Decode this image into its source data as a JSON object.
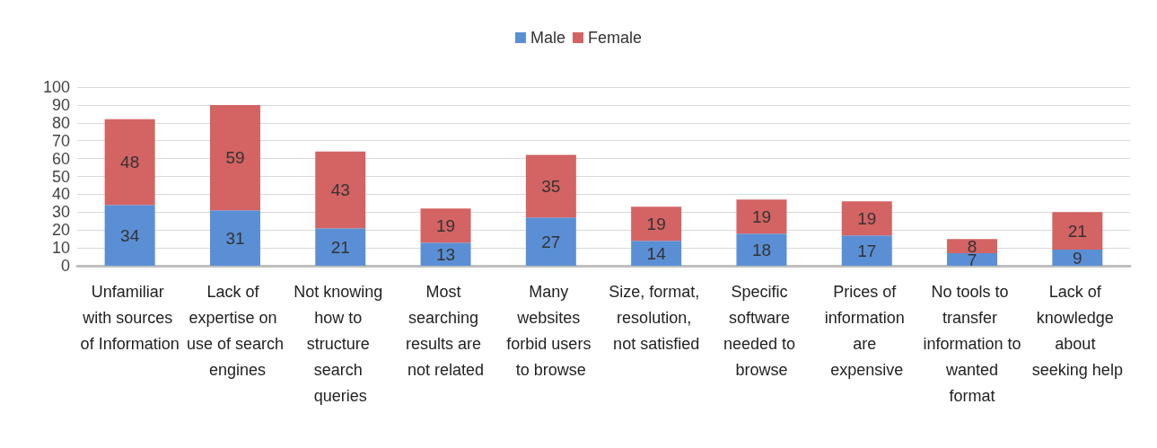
{
  "chart_data": {
    "type": "bar",
    "stacked": true,
    "categories": [
      "Unfamiliar with sources of Information",
      "Lack of expertise on use of search engines",
      "Not knowing how to structure search queries",
      "Most searching results are not related",
      "Many websites forbid users to browse",
      "Size, format, resolution, not satisfied",
      "Specific software needed to browse",
      "Prices of information are expensive",
      "No tools to transfer information to wanted format",
      "Lack of knowledge about seeking help"
    ],
    "series": [
      {
        "name": "Male",
        "color": "#5b8fd5",
        "values": [
          34,
          31,
          21,
          13,
          27,
          14,
          18,
          17,
          7,
          9
        ]
      },
      {
        "name": "Female",
        "color": "#d46363",
        "values": [
          48,
          59,
          43,
          19,
          35,
          19,
          19,
          19,
          8,
          21
        ]
      }
    ],
    "ylim": [
      0,
      100
    ],
    "yticks": [
      0,
      10,
      20,
      30,
      40,
      50,
      60,
      70,
      80,
      90,
      100
    ],
    "grid": "y",
    "legend": "top",
    "data_labels": true
  }
}
